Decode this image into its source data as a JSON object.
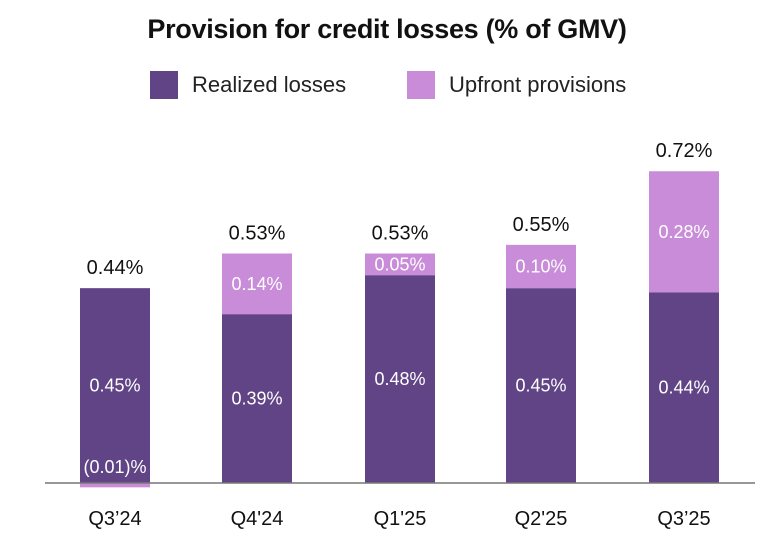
{
  "chart_data": {
    "type": "bar",
    "stacked": true,
    "title": "Provision for credit losses (% of GMV)",
    "categories": [
      "Q3’24",
      "Q4'24",
      "Q1'25",
      "Q2'25",
      "Q3’25"
    ],
    "series": [
      {
        "name": "Realized losses",
        "color": "#614486",
        "values": [
          0.45,
          0.39,
          0.48,
          0.45,
          0.44
        ],
        "labels": [
          "0.45%",
          "0.39%",
          "0.48%",
          "0.45%",
          "0.44%"
        ]
      },
      {
        "name": "Upfront provisions",
        "color": "#c98cd9",
        "values": [
          -0.01,
          0.14,
          0.05,
          0.1,
          0.28
        ],
        "labels": [
          "(0.01)%",
          "0.14%",
          "0.05%",
          "0.10%",
          "0.28%"
        ]
      }
    ],
    "totals": [
      0.44,
      0.53,
      0.53,
      0.55,
      0.72
    ],
    "total_labels": [
      "0.44%",
      "0.53%",
      "0.53%",
      "0.55%",
      "0.72%"
    ],
    "ylim": [
      -0.01,
      0.8
    ],
    "legend_position": "top-center",
    "grid": false
  }
}
